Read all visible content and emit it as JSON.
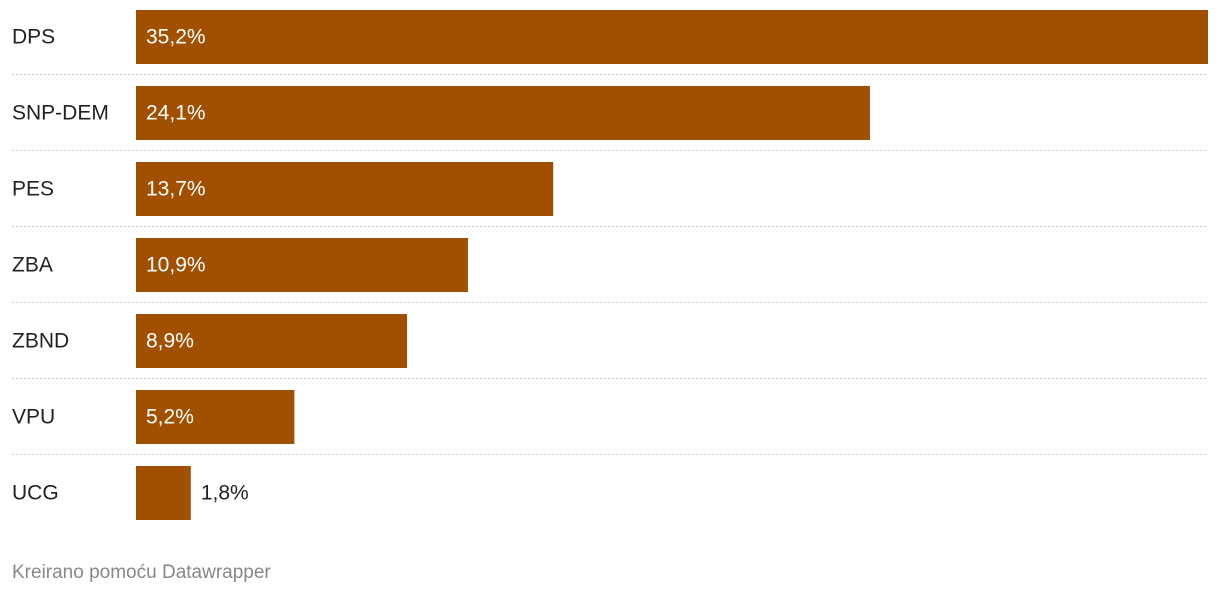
{
  "chart_data": {
    "type": "bar",
    "orientation": "horizontal",
    "categories": [
      "DPS",
      "SNP-DEM",
      "PES",
      "ZBA",
      "ZBND",
      "VPU",
      "UCG"
    ],
    "values": [
      35.2,
      24.1,
      13.7,
      10.9,
      8.9,
      5.2,
      1.8
    ],
    "value_labels": [
      "35,2%",
      "24,1%",
      "13,7%",
      "10,9%",
      "8,9%",
      "5,2%",
      "1,8%"
    ],
    "color": "#a05000",
    "footer": "Kreirano pomoću Datawrapper"
  }
}
